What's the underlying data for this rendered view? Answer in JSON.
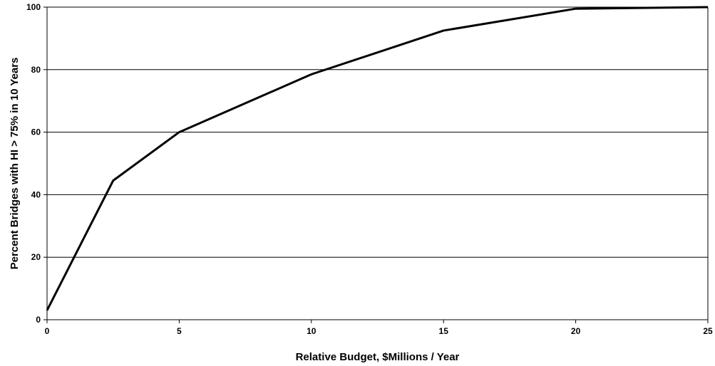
{
  "chart_data": {
    "type": "line",
    "title": "",
    "xlabel": "Relative Budget, $Millions / Year",
    "ylabel": "Percent Bridges with HI > 75% in 10 Years",
    "xlim": [
      0,
      25
    ],
    "ylim": [
      0,
      100
    ],
    "x_ticks": [
      0,
      5,
      10,
      15,
      20,
      25
    ],
    "y_ticks": [
      0,
      20,
      40,
      60,
      80,
      100
    ],
    "grid": "horizontal",
    "legend": "none",
    "line_color": "#000000",
    "series": [
      {
        "x": [
          0,
          2.5,
          5,
          10,
          15,
          20,
          25
        ],
        "y": [
          3,
          44.5,
          60,
          78.5,
          92.5,
          99.5,
          100
        ]
      }
    ]
  }
}
